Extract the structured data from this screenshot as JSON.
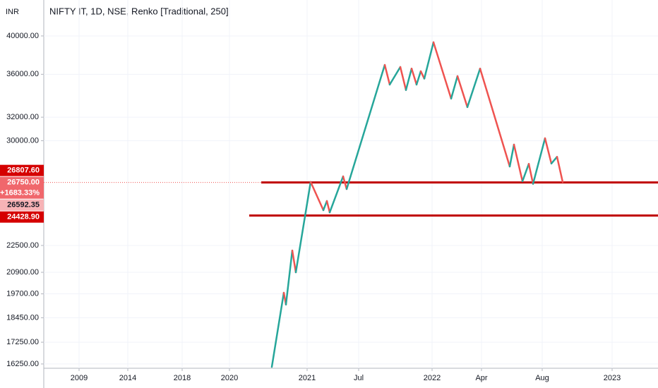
{
  "chart_data": {
    "type": "renko",
    "title": "NIFTY IT, 1D, NSE, Renko [Traditional, 250]",
    "y_unit": "INR",
    "log_scale": true,
    "ylim": [
      16060,
      44150
    ],
    "yticks": [
      {
        "value": 40000,
        "label": "40000.00"
      },
      {
        "value": 36000,
        "label": "36000.00"
      },
      {
        "value": 32000,
        "label": "32000.00"
      },
      {
        "value": 30000,
        "label": "30000.00"
      },
      {
        "value": 22500,
        "label": "22500.00"
      },
      {
        "value": 20900,
        "label": "20900.00"
      },
      {
        "value": 19700,
        "label": "19700.00"
      },
      {
        "value": 18450,
        "label": "18450.00"
      },
      {
        "value": 17250,
        "label": "17250.00"
      },
      {
        "value": 16250,
        "label": "16250.00"
      }
    ],
    "xlim": [
      0,
      870
    ],
    "xticks": [
      {
        "value": 50,
        "label": "2009"
      },
      {
        "value": 119,
        "label": "2014"
      },
      {
        "value": 196,
        "label": "2018"
      },
      {
        "value": 263,
        "label": "2020"
      },
      {
        "value": 373,
        "label": "2021"
      },
      {
        "value": 446,
        "label": "Jul"
      },
      {
        "value": 550,
        "label": "2022"
      },
      {
        "value": 620,
        "label": "Apr"
      },
      {
        "value": 706,
        "label": "Aug"
      },
      {
        "value": 805,
        "label": "2023"
      }
    ],
    "grid": true,
    "up_color": "#26a69a",
    "down_color": "#ef5350",
    "x": [
      323,
      340,
      343,
      352,
      357,
      378,
      396,
      401,
      405,
      424,
      429,
      483,
      490,
      505,
      513,
      521,
      528,
      534,
      539,
      552,
      577,
      586,
      600,
      618,
      660,
      666,
      678,
      687,
      693,
      710,
      719,
      727,
      735
    ],
    "values": [
      16120,
      19760,
      19130,
      22190,
      20900,
      26790,
      24790,
      25420,
      24640,
      27200,
      26270,
      36940,
      35000,
      36730,
      34480,
      36570,
      35000,
      36300,
      35580,
      39310,
      33680,
      35820,
      32900,
      36570,
      27950,
      29680,
      26840,
      28150,
      26650,
      30200,
      28180,
      28700,
      26780
    ],
    "hlines": [
      {
        "value": 26750,
        "x_start": 308,
        "color": "#c00000"
      },
      {
        "value": 24428.9,
        "x_start": 291,
        "color": "#c00000"
      }
    ],
    "price_labels": [
      {
        "value": 26807.6,
        "label": "26807.60",
        "color": "#d50000",
        "text_color": "#ffffff"
      },
      {
        "value": 26750,
        "label": "26750.00",
        "change_label": "+1683.33%",
        "color": "#f0676c",
        "text_color": "#ffffff"
      },
      {
        "value": 26592.35,
        "label": "26592.35",
        "color": "#f7b3b6",
        "text_color": "#131722"
      },
      {
        "value": 24428.9,
        "label": "24428.90",
        "color": "#d50000",
        "text_color": "#ffffff"
      }
    ]
  }
}
